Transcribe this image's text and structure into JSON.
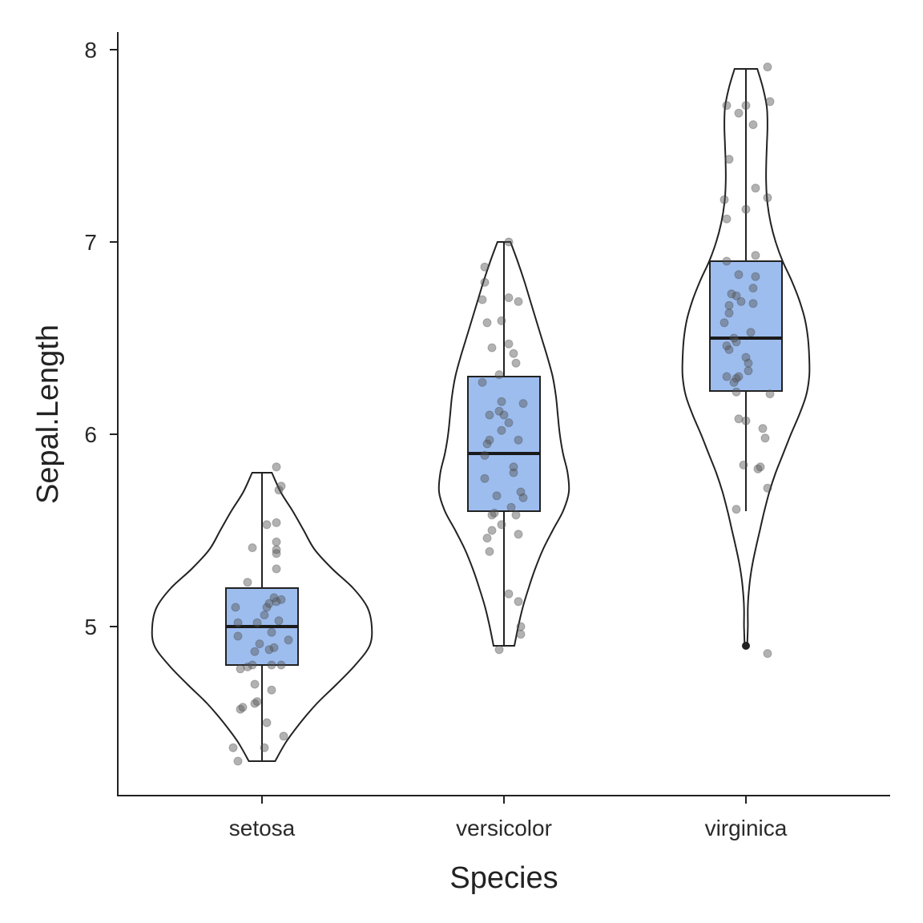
{
  "chart_data": {
    "type": "violin",
    "xlabel": "Species",
    "ylabel": "Sepal.Length",
    "categories": [
      "setosa",
      "versicolor",
      "virginica"
    ],
    "ylim": [
      4.15,
      8.1
    ],
    "yticks": [
      5,
      6,
      7,
      8
    ],
    "ytick_labels": [
      "5",
      "6",
      "7",
      "8"
    ],
    "grid": false,
    "legend": "none",
    "colors": {
      "box_fill": "#9dbdef",
      "points": "#555555",
      "lines": "#222222"
    },
    "groups": [
      {
        "name": "setosa",
        "box": {
          "min": 4.3,
          "q1": 4.8,
          "median": 5.0,
          "q3": 5.2,
          "max": 5.8
        },
        "outliers": [],
        "violin": {
          "y": [
            4.3,
            4.4,
            4.5,
            4.6,
            4.7,
            4.8,
            4.9,
            5.0,
            5.1,
            5.2,
            5.3,
            5.4,
            5.5,
            5.6,
            5.7,
            5.8
          ],
          "half_width": [
            0.12,
            0.22,
            0.35,
            0.5,
            0.68,
            0.85,
            0.98,
            1.0,
            0.96,
            0.83,
            0.64,
            0.48,
            0.38,
            0.28,
            0.17,
            0.09
          ]
        },
        "points": [
          {
            "o": -0.1,
            "y": 4.3
          },
          {
            "o": -0.12,
            "y": 4.37
          },
          {
            "o": 0.01,
            "y": 4.37
          },
          {
            "o": 0.09,
            "y": 4.43
          },
          {
            "o": -0.09,
            "y": 4.57
          },
          {
            "o": -0.08,
            "y": 4.58
          },
          {
            "o": -0.03,
            "y": 4.6
          },
          {
            "o": -0.02,
            "y": 4.61
          },
          {
            "o": 0.02,
            "y": 4.5
          },
          {
            "o": 0.04,
            "y": 4.67
          },
          {
            "o": -0.03,
            "y": 4.7
          },
          {
            "o": -0.09,
            "y": 4.78
          },
          {
            "o": -0.06,
            "y": 4.79
          },
          {
            "o": -0.04,
            "y": 4.8
          },
          {
            "o": 0.04,
            "y": 4.8
          },
          {
            "o": 0.08,
            "y": 4.8
          },
          {
            "o": -0.03,
            "y": 4.87
          },
          {
            "o": 0.03,
            "y": 4.88
          },
          {
            "o": 0.05,
            "y": 4.89
          },
          {
            "o": -0.01,
            "y": 4.91
          },
          {
            "o": 0.11,
            "y": 4.93
          },
          {
            "o": -0.1,
            "y": 4.95
          },
          {
            "o": 0.04,
            "y": 4.97
          },
          {
            "o": -0.1,
            "y": 5.02
          },
          {
            "o": -0.02,
            "y": 5.02
          },
          {
            "o": 0.07,
            "y": 5.03
          },
          {
            "o": 0.01,
            "y": 5.06
          },
          {
            "o": -0.11,
            "y": 5.1
          },
          {
            "o": 0.02,
            "y": 5.1
          },
          {
            "o": 0.03,
            "y": 5.12
          },
          {
            "o": 0.06,
            "y": 5.13
          },
          {
            "o": 0.08,
            "y": 5.14
          },
          {
            "o": 0.05,
            "y": 5.15
          },
          {
            "o": -0.06,
            "y": 5.23
          },
          {
            "o": 0.06,
            "y": 5.3
          },
          {
            "o": 0.06,
            "y": 5.38
          },
          {
            "o": 0.06,
            "y": 5.4
          },
          {
            "o": 0.06,
            "y": 5.44
          },
          {
            "o": -0.04,
            "y": 5.41
          },
          {
            "o": 0.02,
            "y": 5.53
          },
          {
            "o": 0.06,
            "y": 5.54
          },
          {
            "o": 0.07,
            "y": 5.71
          },
          {
            "o": 0.08,
            "y": 5.73
          },
          {
            "o": 0.06,
            "y": 5.83
          }
        ]
      },
      {
        "name": "versicolor",
        "box": {
          "min": 4.9,
          "q1": 5.6,
          "median": 5.9,
          "q3": 6.3,
          "max": 7.0
        },
        "outliers": [],
        "violin": {
          "y": [
            4.9,
            5.0,
            5.1,
            5.2,
            5.3,
            5.4,
            5.5,
            5.6,
            5.7,
            5.8,
            5.9,
            6.0,
            6.1,
            6.2,
            6.3,
            6.4,
            6.5,
            6.6,
            6.7,
            6.8,
            6.9,
            7.0
          ],
          "half_width": [
            0.16,
            0.22,
            0.29,
            0.38,
            0.48,
            0.6,
            0.75,
            0.91,
            1.0,
            0.98,
            0.91,
            0.86,
            0.83,
            0.8,
            0.75,
            0.67,
            0.58,
            0.49,
            0.4,
            0.31,
            0.21,
            0.1
          ]
        },
        "points": [
          {
            "o": -0.02,
            "y": 4.88
          },
          {
            "o": 0.07,
            "y": 4.96
          },
          {
            "o": 0.07,
            "y": 5.0
          },
          {
            "o": 0.06,
            "y": 5.13
          },
          {
            "o": 0.02,
            "y": 5.17
          },
          {
            "o": -0.06,
            "y": 5.39
          },
          {
            "o": -0.07,
            "y": 5.46
          },
          {
            "o": -0.05,
            "y": 5.5
          },
          {
            "o": -0.01,
            "y": 5.53
          },
          {
            "o": 0.06,
            "y": 5.48
          },
          {
            "o": 0.05,
            "y": 5.58
          },
          {
            "o": -0.05,
            "y": 5.58
          },
          {
            "o": -0.04,
            "y": 5.59
          },
          {
            "o": 0.03,
            "y": 5.62
          },
          {
            "o": -0.03,
            "y": 5.68
          },
          {
            "o": 0.08,
            "y": 5.67
          },
          {
            "o": 0.07,
            "y": 5.7
          },
          {
            "o": -0.08,
            "y": 5.77
          },
          {
            "o": 0.04,
            "y": 5.8
          },
          {
            "o": 0.04,
            "y": 5.83
          },
          {
            "o": -0.08,
            "y": 5.89
          },
          {
            "o": -0.07,
            "y": 5.95
          },
          {
            "o": -0.06,
            "y": 5.97
          },
          {
            "o": 0.06,
            "y": 5.97
          },
          {
            "o": -0.01,
            "y": 6.02
          },
          {
            "o": -0.06,
            "y": 6.1
          },
          {
            "o": 0.0,
            "y": 6.1
          },
          {
            "o": -0.02,
            "y": 6.12
          },
          {
            "o": 0.02,
            "y": 6.06
          },
          {
            "o": 0.08,
            "y": 6.16
          },
          {
            "o": -0.01,
            "y": 6.17
          },
          {
            "o": -0.09,
            "y": 6.27
          },
          {
            "o": -0.02,
            "y": 6.31
          },
          {
            "o": 0.05,
            "y": 6.37
          },
          {
            "o": 0.04,
            "y": 6.42
          },
          {
            "o": -0.05,
            "y": 6.45
          },
          {
            "o": 0.02,
            "y": 6.47
          },
          {
            "o": -0.07,
            "y": 6.58
          },
          {
            "o": -0.01,
            "y": 6.59
          },
          {
            "o": -0.09,
            "y": 6.7
          },
          {
            "o": 0.02,
            "y": 6.71
          },
          {
            "o": 0.06,
            "y": 6.69
          },
          {
            "o": -0.08,
            "y": 6.79
          },
          {
            "o": -0.08,
            "y": 6.87
          },
          {
            "o": 0.02,
            "y": 7.0
          }
        ]
      },
      {
        "name": "virginica",
        "box": {
          "min": 5.6,
          "q1": 6.225,
          "median": 6.5,
          "q3": 6.9,
          "max": 7.9
        },
        "outliers": [
          4.9
        ],
        "violin": {
          "y": [
            4.9,
            5.0,
            5.1,
            5.2,
            5.3,
            5.4,
            5.5,
            5.6,
            5.7,
            5.8,
            5.9,
            6.0,
            6.1,
            6.2,
            6.3,
            6.4,
            6.5,
            6.6,
            6.7,
            6.8,
            6.9,
            7.0,
            7.1,
            7.2,
            7.3,
            7.4,
            7.5,
            7.6,
            7.7,
            7.8,
            7.9
          ],
          "half_width": [
            0.02,
            0.03,
            0.03,
            0.05,
            0.09,
            0.15,
            0.22,
            0.29,
            0.37,
            0.47,
            0.59,
            0.71,
            0.84,
            0.95,
            1.0,
            1.0,
            0.98,
            0.93,
            0.84,
            0.72,
            0.58,
            0.47,
            0.39,
            0.34,
            0.32,
            0.32,
            0.33,
            0.34,
            0.33,
            0.27,
            0.18
          ]
        },
        "points": [
          {
            "o": 0.09,
            "y": 4.86
          },
          {
            "o": -0.04,
            "y": 5.61
          },
          {
            "o": 0.09,
            "y": 5.72
          },
          {
            "o": 0.05,
            "y": 5.82
          },
          {
            "o": 0.06,
            "y": 5.83
          },
          {
            "o": -0.01,
            "y": 5.84
          },
          {
            "o": 0.08,
            "y": 5.98
          },
          {
            "o": 0.07,
            "y": 6.03
          },
          {
            "o": 0.0,
            "y": 6.07
          },
          {
            "o": -0.03,
            "y": 6.08
          },
          {
            "o": -0.04,
            "y": 6.22
          },
          {
            "o": 0.1,
            "y": 6.21
          },
          {
            "o": -0.05,
            "y": 6.27
          },
          {
            "o": -0.04,
            "y": 6.29
          },
          {
            "o": -0.08,
            "y": 6.3
          },
          {
            "o": -0.03,
            "y": 6.3
          },
          {
            "o": 0.01,
            "y": 6.33
          },
          {
            "o": 0.01,
            "y": 6.37
          },
          {
            "o": 0.0,
            "y": 6.4
          },
          {
            "o": -0.07,
            "y": 6.44
          },
          {
            "o": -0.08,
            "y": 6.46
          },
          {
            "o": -0.04,
            "y": 6.48
          },
          {
            "o": -0.05,
            "y": 6.5
          },
          {
            "o": 0.02,
            "y": 6.53
          },
          {
            "o": -0.09,
            "y": 6.58
          },
          {
            "o": -0.07,
            "y": 6.63
          },
          {
            "o": -0.07,
            "y": 6.67
          },
          {
            "o": -0.02,
            "y": 6.69
          },
          {
            "o": 0.03,
            "y": 6.68
          },
          {
            "o": -0.04,
            "y": 6.72
          },
          {
            "o": -0.06,
            "y": 6.73
          },
          {
            "o": 0.03,
            "y": 6.76
          },
          {
            "o": -0.03,
            "y": 6.83
          },
          {
            "o": 0.04,
            "y": 6.82
          },
          {
            "o": -0.08,
            "y": 6.9
          },
          {
            "o": 0.04,
            "y": 6.93
          },
          {
            "o": -0.08,
            "y": 7.12
          },
          {
            "o": 0.0,
            "y": 7.17
          },
          {
            "o": -0.09,
            "y": 7.22
          },
          {
            "o": 0.09,
            "y": 7.23
          },
          {
            "o": 0.04,
            "y": 7.28
          },
          {
            "o": -0.07,
            "y": 7.43
          },
          {
            "o": 0.03,
            "y": 7.61
          },
          {
            "o": -0.03,
            "y": 7.67
          },
          {
            "o": -0.08,
            "y": 7.71
          },
          {
            "o": 0.0,
            "y": 7.71
          },
          {
            "o": 0.1,
            "y": 7.73
          },
          {
            "o": 0.09,
            "y": 7.91
          }
        ]
      }
    ]
  }
}
